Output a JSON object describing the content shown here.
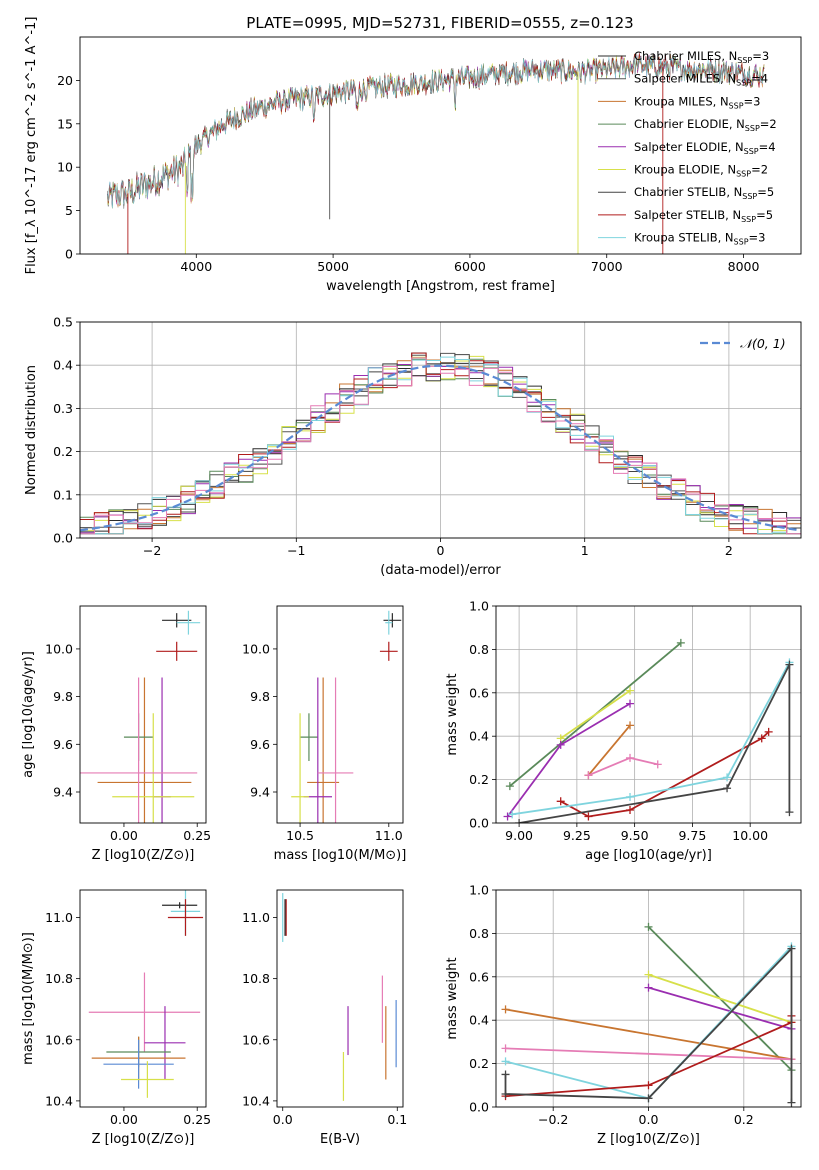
{
  "figure": {
    "title": "PLATE=0995, MJD=52731, FIBERID=0555, z=0.123"
  },
  "models": [
    {
      "label": "Chabrier MILES, N",
      "suffix": "=3",
      "color": "#2b2b2b"
    },
    {
      "label": "Salpeter MILES, N",
      "suffix": "=4",
      "color": "#555555"
    },
    {
      "label": "Kroupa MILES, N",
      "suffix": "=3",
      "color": "#c87530"
    },
    {
      "label": "Chabrier ELODIE, N",
      "suffix": "=2",
      "color": "#5a8a5a"
    },
    {
      "label": "Salpeter ELODIE, N",
      "suffix": "=4",
      "color": "#9a2eb0"
    },
    {
      "label": "Kroupa ELODIE, N",
      "suffix": "=2",
      "color": "#d7e04a"
    },
    {
      "label": "Chabrier STELIB, N",
      "suffix": "=5",
      "color": "#444444"
    },
    {
      "label": "Salpeter STELIB, N",
      "suffix": "=5",
      "color": "#b01c1c"
    },
    {
      "label": "Kroupa STELIB, N",
      "suffix": "=3",
      "color": "#7fd4de"
    }
  ],
  "legend_subscript": "SSP",
  "chart_data": [
    {
      "type": "line",
      "panel": "spectrum",
      "xlabel": "wavelength [Angstrom, rest frame]",
      "ylabel": "Flux [f_λ 10^-17 erg cm^-2 s^-1 A^-1]",
      "xlim": [
        3150,
        8420
      ],
      "ylim": [
        0,
        25
      ],
      "xticks": [
        4000,
        5000,
        6000,
        7000,
        8000
      ],
      "yticks": [
        0,
        5,
        10,
        15,
        20
      ],
      "continuum": {
        "x": [
          3350,
          3500,
          3700,
          3900,
          4000,
          4200,
          4400,
          4600,
          4800,
          5000,
          5200,
          5500,
          5800,
          6000,
          6200,
          6500,
          6800,
          7000,
          7200,
          7400,
          7600,
          7800,
          8000,
          8150
        ],
        "y": [
          6.5,
          7.0,
          8.5,
          10.0,
          12.5,
          15.0,
          16.5,
          17.5,
          18.0,
          18.5,
          19.0,
          19.5,
          20.0,
          20.3,
          20.8,
          21.2,
          21.0,
          21.2,
          21.8,
          21.6,
          21.3,
          21.2,
          20.8,
          20.5
        ]
      }
    },
    {
      "type": "line",
      "panel": "residuals",
      "xlabel": "(data-model)/error",
      "ylabel": "Normed distribution",
      "xlim": [
        -2.5,
        2.5
      ],
      "ylim": [
        0,
        0.5
      ],
      "xticks": [
        -2,
        -1,
        0,
        1,
        2
      ],
      "yticks": [
        0.0,
        0.1,
        0.2,
        0.3,
        0.4,
        0.5
      ],
      "grid": true,
      "legend": "top-right",
      "gaussian_label": "𝒩(0, 1)"
    },
    {
      "type": "scatter",
      "panel": "age-vs-Z",
      "xlabel": "Z [log10(Z/Z⊙)]",
      "ylabel": "age [log10(age/yr)]",
      "xlim": [
        -0.15,
        0.28
      ],
      "ylim": [
        9.27,
        10.18
      ],
      "xticks": [
        0.0,
        0.25
      ],
      "yticks": [
        9.4,
        9.6,
        9.8,
        10.0
      ],
      "points": [
        {
          "model": 0,
          "x": 0.18,
          "y": 10.12,
          "xerr": 0.05,
          "yerr": 0.03
        },
        {
          "model": 8,
          "x": 0.22,
          "y": 10.11,
          "xerr": 0.04,
          "yerr": 0.05
        },
        {
          "model": 7,
          "x": 0.18,
          "y": 9.99,
          "xerr": 0.07,
          "yerr": 0.04
        },
        {
          "model": 2,
          "x": 0.07,
          "y": 9.44,
          "xerr": 0.16,
          "yerr": 0.44
        },
        {
          "model": 3,
          "x": 0.05,
          "y": 9.63,
          "xerr": 0.05,
          "yerr": 0.1
        },
        {
          "model": 4,
          "x": 0.13,
          "y": 9.38,
          "xerr": 0.03,
          "yerr": 0.5
        },
        {
          "model": 5,
          "x": 0.1,
          "y": 9.38,
          "xerr": 0.14,
          "yerr": 0.35
        },
        {
          "model": 9,
          "x": 0.05,
          "y": 9.48,
          "xerr": 0.2,
          "yerr": 0.4
        }
      ]
    },
    {
      "type": "scatter",
      "panel": "age-vs-mass",
      "xlabel": "mass [log10(M/M⊙)]",
      "ylabel": "",
      "xlim": [
        10.37,
        11.08
      ],
      "ylim": [
        9.27,
        10.18
      ],
      "xticks": [
        10.5,
        11.0
      ],
      "yticks": [
        9.4,
        9.6,
        9.8,
        10.0
      ],
      "points": [
        {
          "model": 0,
          "x": 11.02,
          "y": 10.12,
          "xerr": 0.05,
          "yerr": 0.03
        },
        {
          "model": 8,
          "x": 11.0,
          "y": 10.11,
          "xerr": 0.02,
          "yerr": 0.05
        },
        {
          "model": 7,
          "x": 11.0,
          "y": 9.99,
          "xerr": 0.05,
          "yerr": 0.04
        },
        {
          "model": 2,
          "x": 10.63,
          "y": 9.44,
          "xerr": 0.09,
          "yerr": 0.44
        },
        {
          "model": 3,
          "x": 10.55,
          "y": 9.63,
          "xerr": 0.05,
          "yerr": 0.1
        },
        {
          "model": 4,
          "x": 10.6,
          "y": 9.38,
          "xerr": 0.08,
          "yerr": 0.5
        },
        {
          "model": 5,
          "x": 10.5,
          "y": 9.38,
          "xerr": 0.05,
          "yerr": 0.35
        },
        {
          "model": 9,
          "x": 10.7,
          "y": 9.48,
          "xerr": 0.1,
          "yerr": 0.4
        }
      ]
    },
    {
      "type": "line",
      "panel": "weight-vs-age",
      "xlabel": "age [log10(age/yr)]",
      "ylabel": "mass weight",
      "xlim": [
        8.9,
        10.22
      ],
      "ylim": [
        0,
        1.0
      ],
      "xticks": [
        9.0,
        9.25,
        9.5,
        9.75,
        10.0
      ],
      "yticks": [
        0.0,
        0.2,
        0.4,
        0.6,
        0.8,
        1.0
      ],
      "grid": true,
      "series": [
        {
          "model": 3,
          "x": [
            8.96,
            9.7
          ],
          "y": [
            0.17,
            0.83
          ]
        },
        {
          "model": 5,
          "x": [
            9.18,
            9.48
          ],
          "y": [
            0.39,
            0.61
          ]
        },
        {
          "model": 4,
          "x": [
            8.95,
            9.18,
            9.48
          ],
          "y": [
            0.03,
            0.36,
            0.55
          ]
        },
        {
          "model": 2,
          "x": [
            9.3,
            9.48
          ],
          "y": [
            0.22,
            0.45
          ]
        },
        {
          "model": 9,
          "x": [
            9.3,
            9.48,
            9.6
          ],
          "y": [
            0.22,
            0.3,
            0.27
          ]
        },
        {
          "model": 7,
          "x": [
            9.18,
            9.3,
            9.48,
            10.05,
            10.08
          ],
          "y": [
            0.1,
            0.03,
            0.06,
            0.39,
            0.42
          ]
        },
        {
          "model": 8,
          "x": [
            8.97,
            9.48,
            9.9,
            10.17
          ],
          "y": [
            0.04,
            0.12,
            0.21,
            0.74
          ]
        },
        {
          "model": 6,
          "x": [
            9.0,
            9.9,
            10.17,
            10.17
          ],
          "y": [
            0.0,
            0.16,
            0.73,
            0.05
          ]
        }
      ]
    },
    {
      "type": "scatter",
      "panel": "mass-vs-Z",
      "xlabel": "Z [log10(Z/Z⊙)]",
      "ylabel": "mass [log10(M/M⊙)]",
      "xlim": [
        -0.15,
        0.28
      ],
      "ylim": [
        10.38,
        11.09
      ],
      "xticks": [
        0.0,
        0.25
      ],
      "yticks": [
        10.4,
        10.6,
        10.8,
        11.0
      ],
      "points": [
        {
          "model": 0,
          "x": 0.19,
          "y": 11.04,
          "xerr": 0.06,
          "yerr": 0.01
        },
        {
          "model": 8,
          "x": 0.21,
          "y": 11.02,
          "xerr": 0.05,
          "yerr": 0.08
        },
        {
          "model": 7,
          "x": 0.21,
          "y": 11.0,
          "xerr": 0.06,
          "yerr": 0.06
        },
        {
          "model": 9,
          "x": 0.07,
          "y": 10.69,
          "xerr": 0.19,
          "yerr": 0.13
        },
        {
          "model": 4,
          "x": 0.14,
          "y": 10.59,
          "xerr": 0.07,
          "yerr": 0.12
        },
        {
          "model": 3,
          "x": 0.05,
          "y": 10.56,
          "xerr": 0.11,
          "yerr": 0.05
        },
        {
          "model": 2,
          "x": 0.05,
          "y": 10.54,
          "xerr": 0.16,
          "yerr": 0.07
        },
        {
          "model": 10,
          "x": 0.05,
          "y": 10.52,
          "xerr": 0.12,
          "yerr": 0.08
        },
        {
          "model": 5,
          "x": 0.08,
          "y": 10.47,
          "xerr": 0.09,
          "yerr": 0.06
        }
      ]
    },
    {
      "type": "scatter",
      "panel": "mass-vs-EBV",
      "xlabel": "E(B-V)",
      "ylabel": "",
      "xlim": [
        -0.005,
        0.105
      ],
      "ylim": [
        10.38,
        11.09
      ],
      "xticks": [
        0.0,
        0.1
      ],
      "yticks": [
        10.4,
        10.6,
        10.8,
        11.0
      ],
      "points": [
        {
          "model": 8,
          "x": 0.0,
          "y": 11.0,
          "xerr": 0.0,
          "yerr": 0.08
        },
        {
          "model": 7,
          "x": 0.003,
          "y": 11.0,
          "xerr": 0.0,
          "yerr": 0.06
        },
        {
          "model": 0,
          "x": 0.002,
          "y": 11.0,
          "xerr": 0.0,
          "yerr": 0.06
        },
        {
          "model": 9,
          "x": 0.087,
          "y": 10.7,
          "xerr": 0.0,
          "yerr": 0.11
        },
        {
          "model": 2,
          "x": 0.09,
          "y": 10.59,
          "xerr": 0.0,
          "yerr": 0.12
        },
        {
          "model": 10,
          "x": 0.099,
          "y": 10.62,
          "xerr": 0.0,
          "yerr": 0.11
        },
        {
          "model": 4,
          "x": 0.057,
          "y": 10.63,
          "xerr": 0.0,
          "yerr": 0.08
        },
        {
          "model": 5,
          "x": 0.053,
          "y": 10.48,
          "xerr": 0.0,
          "yerr": 0.08
        }
      ]
    },
    {
      "type": "line",
      "panel": "weight-vs-Z",
      "xlabel": "Z [log10(Z/Z⊙)]",
      "ylabel": "mass weight",
      "xlim": [
        -0.32,
        0.32
      ],
      "ylim": [
        0,
        1.0
      ],
      "xticks": [
        -0.2,
        0.0,
        0.2
      ],
      "yticks": [
        0.0,
        0.2,
        0.4,
        0.6,
        0.8,
        1.0
      ],
      "grid": true,
      "series": [
        {
          "model": 3,
          "x": [
            0.0,
            0.3
          ],
          "y": [
            0.83,
            0.17
          ]
        },
        {
          "model": 5,
          "x": [
            0.0,
            0.3
          ],
          "y": [
            0.61,
            0.39
          ]
        },
        {
          "model": 4,
          "x": [
            0.0,
            0.3
          ],
          "y": [
            0.55,
            0.36
          ]
        },
        {
          "model": 2,
          "x": [
            -0.3,
            0.3
          ],
          "y": [
            0.45,
            0.22
          ]
        },
        {
          "model": 9,
          "x": [
            -0.3,
            0.3
          ],
          "y": [
            0.27,
            0.22
          ]
        },
        {
          "model": 8,
          "x": [
            -0.3,
            0.0,
            0.3
          ],
          "y": [
            0.21,
            0.04,
            0.74
          ]
        },
        {
          "model": 7,
          "x": [
            -0.3,
            0.0,
            0.3,
            0.3
          ],
          "y": [
            0.05,
            0.1,
            0.39,
            0.42
          ]
        },
        {
          "model": 6,
          "x": [
            -0.3,
            -0.3,
            0.0,
            0.3,
            0.3
          ],
          "y": [
            0.15,
            0.06,
            0.04,
            0.73,
            0.02
          ]
        }
      ]
    }
  ],
  "extra_colors": {
    "pink": "#e57cb5",
    "blue": "#5a8ad4"
  }
}
